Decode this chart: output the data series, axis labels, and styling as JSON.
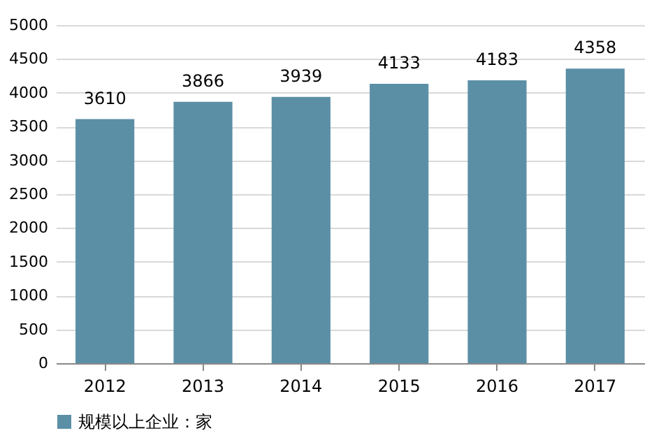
{
  "chart_data": {
    "type": "bar",
    "categories": [
      "2012",
      "2013",
      "2014",
      "2015",
      "2016",
      "2017"
    ],
    "series": [
      {
        "name": "规模以上企业：家",
        "color": "#5b8fa6",
        "values": [
          3610,
          3866,
          3939,
          4133,
          4183,
          4358
        ]
      }
    ],
    "ylim": [
      0,
      5000
    ],
    "yticks": [
      0,
      500,
      1000,
      1500,
      2000,
      2500,
      3000,
      3500,
      4000,
      4500,
      5000
    ],
    "grid": "y",
    "legend": "bottom",
    "data_labels": true
  }
}
